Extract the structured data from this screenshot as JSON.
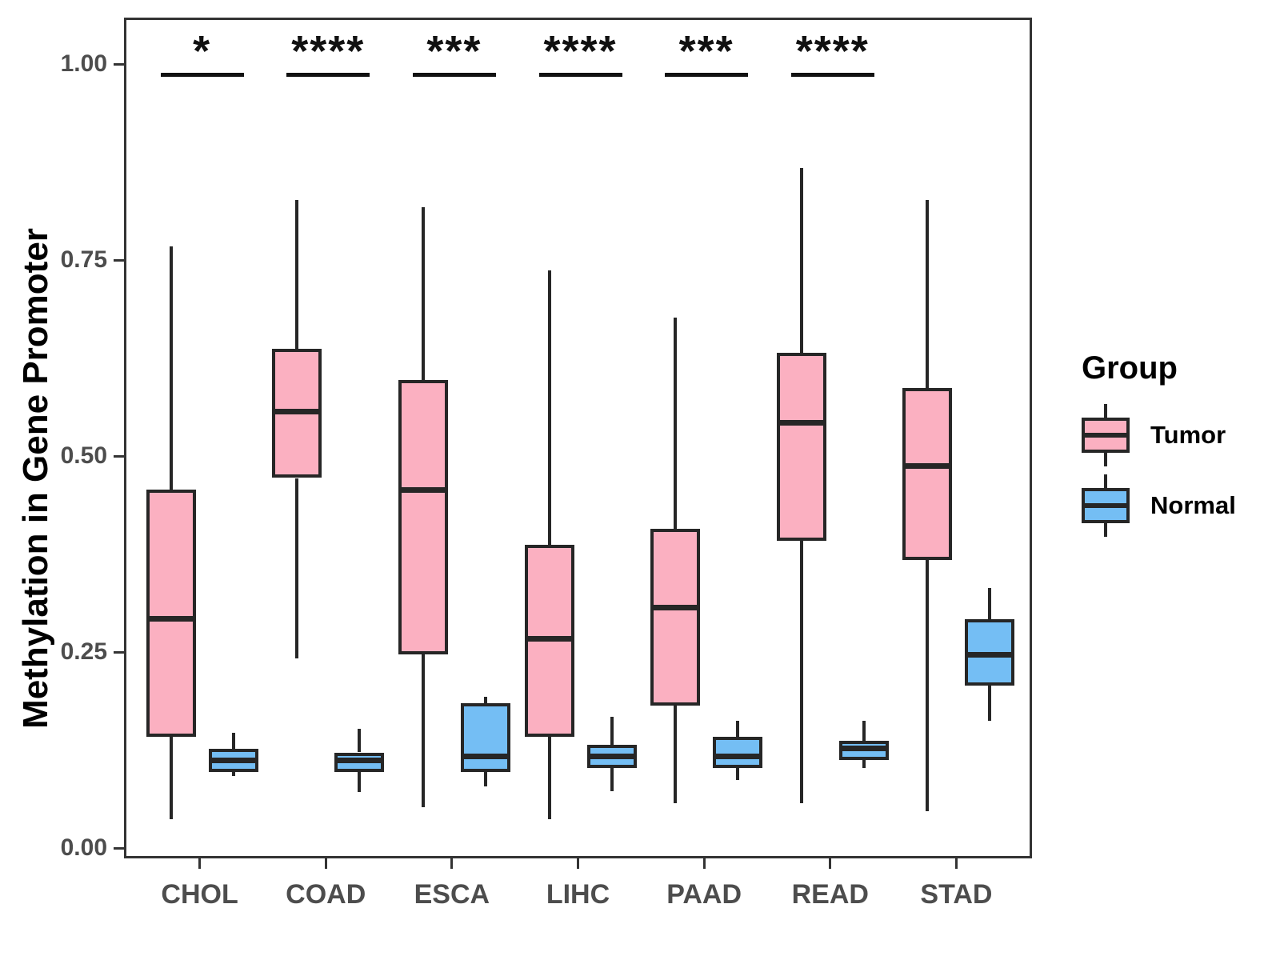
{
  "figure_title": "",
  "axes": {
    "y_title": "Methylation in Gene Promoter",
    "y_tick_labels": [
      "0.00",
      "0.25",
      "0.50",
      "0.75",
      "1.00"
    ],
    "x_tick_labels": [
      "CHOL",
      "COAD",
      "ESCA",
      "LIHC",
      "PAAD",
      "READ",
      "STAD"
    ]
  },
  "legend": {
    "title": "Group",
    "entries": [
      {
        "label": "Tumor",
        "color": "#FBB0C1"
      },
      {
        "label": "Normal",
        "color": "#74BEF4"
      }
    ]
  },
  "colors": {
    "tumor_fill": "#FBB0C1",
    "normal_fill": "#74BEF4",
    "box_line": "#262626",
    "panel_border": "#333333",
    "axis_text": "#4d4d4d",
    "significance": "#111111"
  },
  "chart_data": {
    "type": "boxplot",
    "title": "",
    "xlabel": "",
    "ylabel": "Methylation in Gene Promoter",
    "ylim": [
      0,
      1.06
    ],
    "grid": false,
    "legend_position": "right",
    "y_ticks": [
      0,
      0.25,
      0.5,
      0.75,
      1.0
    ],
    "y_tick_labels": [
      "0.00",
      "0.25",
      "0.50",
      "0.75",
      "1.00"
    ],
    "categories": [
      "CHOL",
      "COAD",
      "ESCA",
      "LIHC",
      "PAAD",
      "READ",
      "STAD"
    ],
    "series": [
      {
        "name": "Tumor",
        "fill": "#FBB0C1",
        "boxes": [
          {
            "low": 0.04,
            "q1": 0.145,
            "median": 0.295,
            "q3": 0.46,
            "high": 0.77
          },
          {
            "low": 0.245,
            "q1": 0.475,
            "median": 0.56,
            "q3": 0.64,
            "high": 0.83
          },
          {
            "low": 0.055,
            "q1": 0.25,
            "median": 0.46,
            "q3": 0.6,
            "high": 0.82
          },
          {
            "low": 0.04,
            "q1": 0.145,
            "median": 0.27,
            "q3": 0.39,
            "high": 0.74
          },
          {
            "low": 0.06,
            "q1": 0.185,
            "median": 0.31,
            "q3": 0.41,
            "high": 0.68
          },
          {
            "low": 0.06,
            "q1": 0.395,
            "median": 0.545,
            "q3": 0.635,
            "high": 0.87
          },
          {
            "low": 0.05,
            "q1": 0.37,
            "median": 0.49,
            "q3": 0.59,
            "high": 0.83
          }
        ]
      },
      {
        "name": "Normal",
        "fill": "#74BEF4",
        "boxes": [
          {
            "low": 0.095,
            "q1": 0.1,
            "median": 0.115,
            "q3": 0.13,
            "high": 0.15
          },
          {
            "low": 0.075,
            "q1": 0.1,
            "median": 0.115,
            "q3": 0.125,
            "high": 0.155
          },
          {
            "low": 0.082,
            "q1": 0.1,
            "median": 0.12,
            "q3": 0.188,
            "high": 0.196
          },
          {
            "low": 0.075,
            "q1": 0.105,
            "median": 0.12,
            "q3": 0.135,
            "high": 0.17
          },
          {
            "low": 0.09,
            "q1": 0.105,
            "median": 0.12,
            "q3": 0.145,
            "high": 0.165
          },
          {
            "low": 0.105,
            "q1": 0.115,
            "median": 0.13,
            "q3": 0.14,
            "high": 0.165
          },
          {
            "low": 0.165,
            "q1": 0.21,
            "median": 0.25,
            "q3": 0.295,
            "high": 0.335
          }
        ]
      }
    ],
    "significance": [
      {
        "category": "CHOL",
        "label": "*"
      },
      {
        "category": "COAD",
        "label": "****"
      },
      {
        "category": "ESCA",
        "label": "***"
      },
      {
        "category": "LIHC",
        "label": "****"
      },
      {
        "category": "PAAD",
        "label": "***"
      },
      {
        "category": "READ",
        "label": "****"
      },
      {
        "category": "STAD",
        "label": null
      }
    ]
  }
}
